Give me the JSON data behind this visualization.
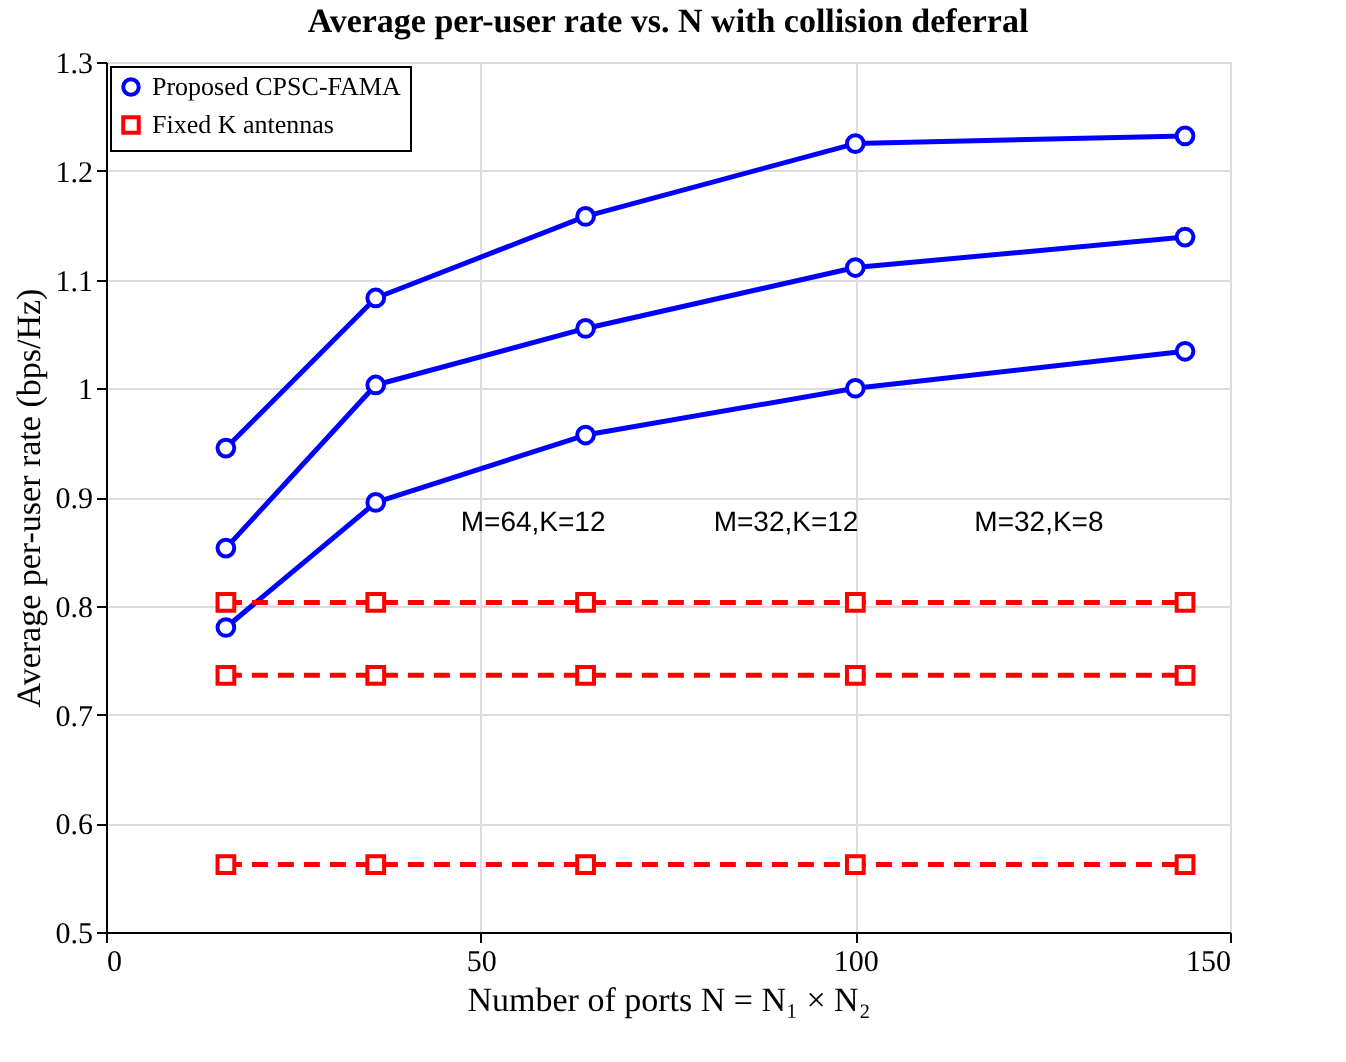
{
  "chart_data": {
    "type": "line",
    "title": "Average per-user rate vs. N with collision deferral",
    "xlabel": "Number of ports N = N₁ × N₂",
    "ylabel": "Average per-user rate (bps/Hz)",
    "x": [
      16,
      36,
      64,
      100,
      144
    ],
    "series": [
      {
        "name": "Proposed CPSC-FAMA",
        "color": "#0000ff",
        "marker": "circle",
        "line_style": "solid",
        "values": [
          0.945,
          1.083,
          1.158,
          1.225,
          1.232
        ]
      },
      {
        "color": "#0000ff",
        "marker": "circle",
        "line_style": "solid",
        "values": [
          0.853,
          1.003,
          1.055,
          1.111,
          1.139
        ]
      },
      {
        "color": "#0000ff",
        "marker": "circle",
        "line_style": "solid",
        "values": [
          0.78,
          0.895,
          0.957,
          1.0,
          1.034
        ]
      },
      {
        "name": "Fixed K antennas",
        "color": "#ff0000",
        "marker": "square",
        "line_style": "dashed",
        "values": [
          0.803,
          0.803,
          0.803,
          0.803,
          0.803
        ]
      },
      {
        "color": "#ff0000",
        "marker": "square",
        "line_style": "dashed",
        "values": [
          0.736,
          0.736,
          0.736,
          0.736,
          0.736
        ]
      },
      {
        "color": "#ff0000",
        "marker": "square",
        "line_style": "dashed",
        "values": [
          0.562,
          0.562,
          0.562,
          0.562,
          0.562
        ]
      }
    ],
    "annotations": [
      "M=64,K=12",
      "M=32,K=12",
      "M=32,K=8"
    ],
    "xlim": [
      0,
      150
    ],
    "xticks": [
      0,
      50,
      100,
      150
    ],
    "ylim": [
      0.5,
      1.3
    ],
    "yticks": [
      0.5,
      0.6,
      0.7,
      0.8,
      0.9,
      1,
      1.1,
      1.2,
      1.3
    ],
    "grid": true,
    "legend": "top left"
  }
}
